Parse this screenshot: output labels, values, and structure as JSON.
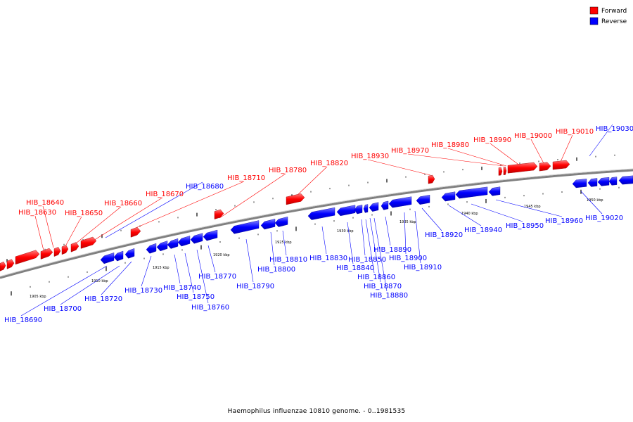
{
  "caption": "Haemophilus influenzae 10810 genome. - 0..1981535",
  "legend": [
    {
      "label": "Forward",
      "color": "#ff0000"
    },
    {
      "label": "Reverse",
      "color": "#0000ff"
    }
  ],
  "colors": {
    "forward": "#ff0000",
    "reverse": "#0000ff",
    "backbone": "#808080"
  },
  "scale_labels": [
    "1905 kbp",
    "1910 kbp",
    "1915 kbp",
    "1920 kbp",
    "1925 kbp",
    "1930 kbp",
    "1935 kbp",
    "1940 kbp",
    "1945 kbp",
    "1950 kbp"
  ],
  "forward_genes": [
    "HIB_18630",
    "HIB_18640",
    "HIB_18650",
    "HIB_18660",
    "HIB_18670",
    "HIB_18710",
    "HIB_18780",
    "HIB_18820",
    "HIB_18930",
    "HIB_18970",
    "HIB_18980",
    "HIB_18990",
    "HIB_19000",
    "HIB_19010"
  ],
  "reverse_genes": [
    "HIB_18680",
    "HIB_18690",
    "HIB_18700",
    "HIB_18720",
    "HIB_18730",
    "HIB_18740",
    "HIB_18750",
    "HIB_18760",
    "HIB_18770",
    "HIB_18790",
    "HIB_18800",
    "HIB_18810",
    "HIB_18830",
    "HIB_18840",
    "HIB_18850",
    "HIB_18860",
    "HIB_18870",
    "HIB_18880",
    "HIB_18890",
    "HIB_18900",
    "HIB_18910",
    "HIB_18920",
    "HIB_18940",
    "HIB_18950",
    "HIB_18960",
    "HIB_19020",
    "HIB_19030"
  ]
}
